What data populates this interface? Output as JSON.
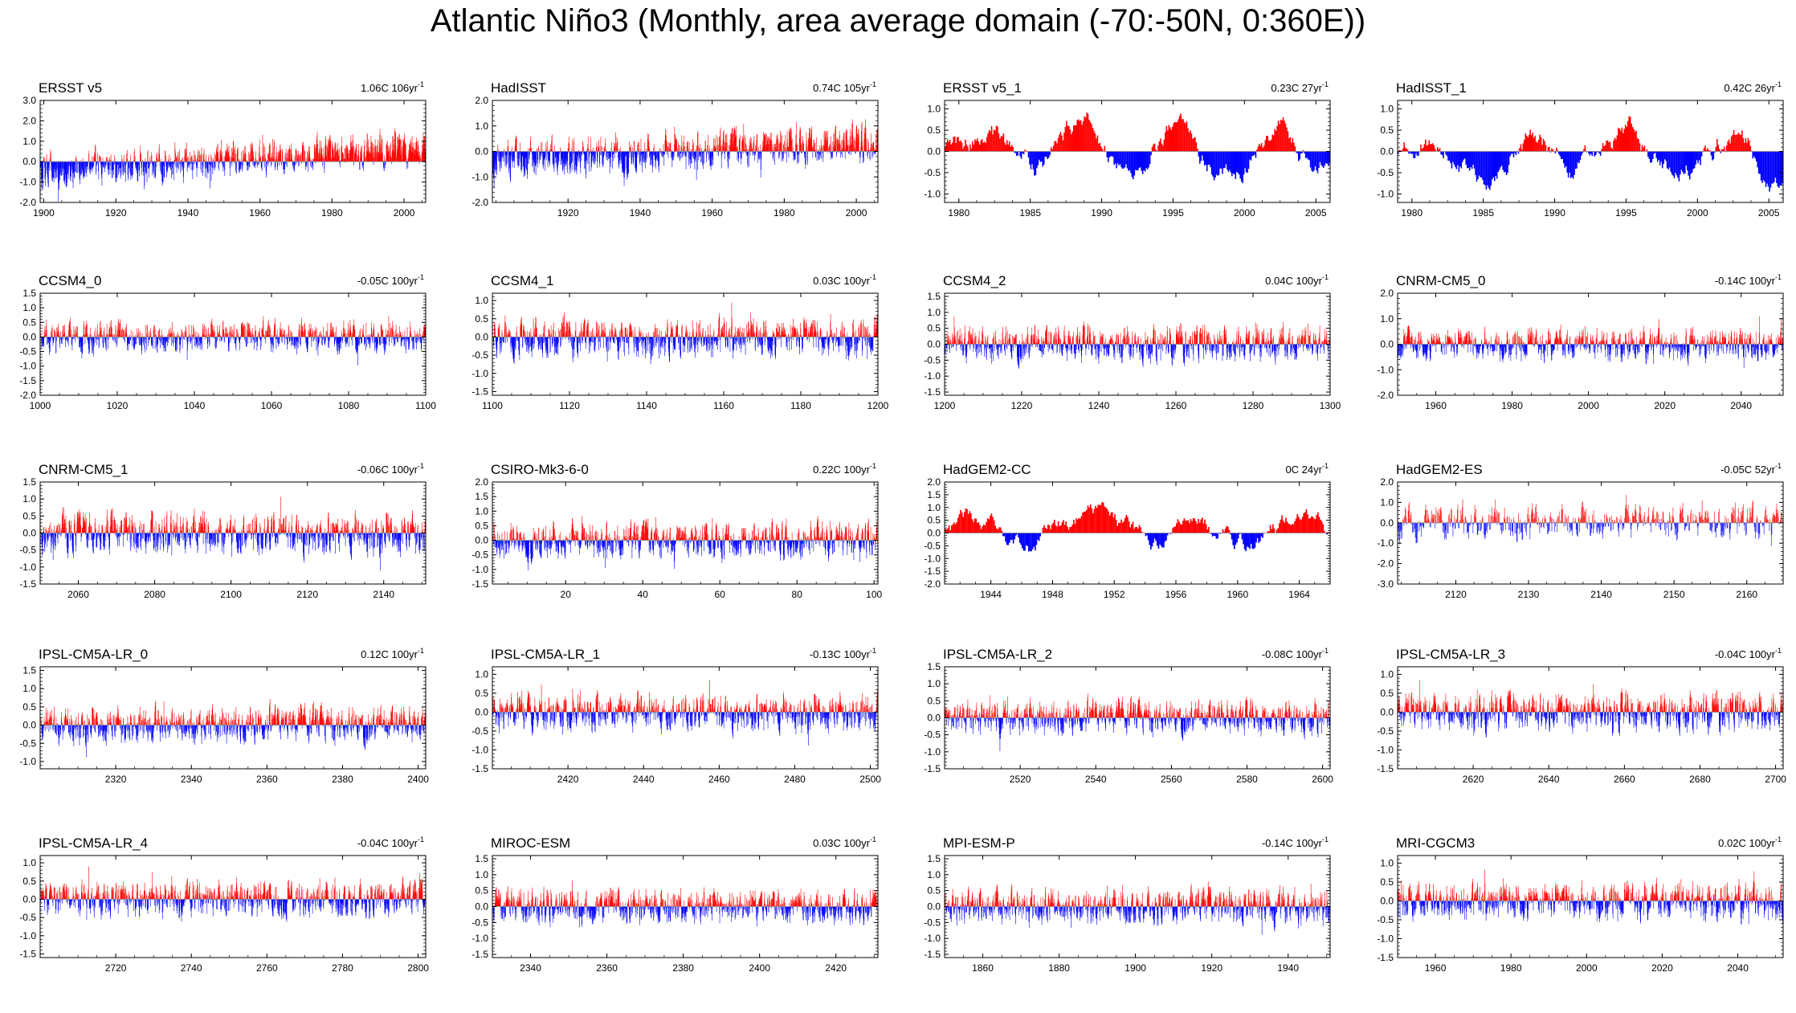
{
  "title": "Atlantic Niño3 (Monthly, area average domain (-70:-50N, 0:360E))",
  "colors": {
    "positive": "#ff0000",
    "negative": "#0000ff",
    "frame": "#000000",
    "zero": "#888888"
  },
  "chart_data": [
    {
      "name": "ERSST v5",
      "trend": "1.06C 106yr",
      "trend_sup": "-1",
      "type": "bar",
      "style": "noisy",
      "xlim": [
        1899,
        2006
      ],
      "ylim": [
        -2.0,
        3.0
      ],
      "xticks": [
        1900,
        1920,
        1940,
        1960,
        1980,
        2000
      ],
      "yticks": [
        "-2.0",
        "-1.0",
        "0.0",
        "1.0",
        "2.0",
        "3.0"
      ],
      "ytick_values": [
        -2,
        -1,
        0,
        1,
        2,
        3
      ],
      "amp": 0.7,
      "drift": [
        -0.5,
        0.7
      ],
      "seed": 11,
      "series": "synthetic monthly anomaly bars"
    },
    {
      "name": "HadISST",
      "trend": "0.74C 105yr",
      "trend_sup": "-1",
      "type": "bar",
      "style": "noisy",
      "xlim": [
        1899,
        2006
      ],
      "ylim": [
        -2.0,
        2.0
      ],
      "xticks": [
        1920,
        1940,
        1960,
        1980,
        2000
      ],
      "yticks": [
        "-2.0",
        "-1.0",
        "0.0",
        "1.0",
        "2.0"
      ],
      "ytick_values": [
        -2,
        -1,
        0,
        1,
        2
      ],
      "amp": 0.6,
      "drift": [
        -0.4,
        0.4
      ],
      "seed": 12,
      "series": "synthetic monthly anomaly bars"
    },
    {
      "name": "ERSST v5_1",
      "trend": "0.23C 27yr",
      "trend_sup": "-1",
      "type": "bar",
      "style": "smooth",
      "xlim": [
        1979,
        2006
      ],
      "ylim": [
        -1.2,
        1.2
      ],
      "xticks": [
        1980,
        1985,
        1990,
        1995,
        2000,
        2005
      ],
      "yticks": [
        "-1.0",
        "-0.5",
        "0.0",
        "0.5",
        "1.0"
      ],
      "ytick_values": [
        -1,
        -0.5,
        0,
        0.5,
        1
      ],
      "amp": 0.9,
      "drift": [
        0,
        0
      ],
      "seed": 13,
      "series": "synthetic monthly anomaly bars"
    },
    {
      "name": "HadISST_1",
      "trend": "0.42C 26yr",
      "trend_sup": "-1",
      "type": "bar",
      "style": "smooth",
      "xlim": [
        1979,
        2006
      ],
      "ylim": [
        -1.2,
        1.2
      ],
      "xticks": [
        1980,
        1985,
        1990,
        1995,
        2000,
        2005
      ],
      "yticks": [
        "-1.0",
        "-0.5",
        "0.0",
        "0.5",
        "1.0"
      ],
      "ytick_values": [
        -1,
        -0.5,
        0,
        0.5,
        1
      ],
      "amp": 0.9,
      "drift": [
        0,
        0
      ],
      "seed": 14,
      "series": "synthetic monthly anomaly bars"
    },
    {
      "name": "CCSM4_0",
      "trend": "-0.05C 100yr",
      "trend_sup": "-1",
      "type": "bar",
      "style": "noisy",
      "xlim": [
        1000,
        1100
      ],
      "ylim": [
        -2.0,
        1.5
      ],
      "xticks": [
        1000,
        1020,
        1040,
        1060,
        1080,
        1100
      ],
      "yticks": [
        "-2.0",
        "-1.5",
        "-1.0",
        "-0.5",
        "0.0",
        "0.5",
        "1.0",
        "1.5"
      ],
      "ytick_values": [
        -2,
        -1.5,
        -1,
        -0.5,
        0,
        0.5,
        1,
        1.5
      ],
      "amp": 0.45,
      "drift": [
        0,
        0
      ],
      "seed": 21,
      "series": "synthetic monthly anomaly bars"
    },
    {
      "name": "CCSM4_1",
      "trend": "0.03C 100yr",
      "trend_sup": "-1",
      "type": "bar",
      "style": "noisy",
      "xlim": [
        1100,
        1200
      ],
      "ylim": [
        -1.6,
        1.2
      ],
      "xticks": [
        1100,
        1120,
        1140,
        1160,
        1180,
        1200
      ],
      "yticks": [
        "-1.5",
        "-1.0",
        "-0.5",
        "0.0",
        "0.5",
        "1.0"
      ],
      "ytick_values": [
        -1.5,
        -1,
        -0.5,
        0,
        0.5,
        1
      ],
      "amp": 0.45,
      "drift": [
        0,
        0
      ],
      "seed": 22,
      "series": "synthetic monthly anomaly bars"
    },
    {
      "name": "CCSM4_2",
      "trend": "0.04C 100yr",
      "trend_sup": "-1",
      "type": "bar",
      "style": "noisy",
      "xlim": [
        1200,
        1300
      ],
      "ylim": [
        -1.6,
        1.6
      ],
      "xticks": [
        1200,
        1220,
        1240,
        1260,
        1280,
        1300
      ],
      "yticks": [
        "-1.5",
        "-1.0",
        "-0.5",
        "0.0",
        "0.5",
        "1.0",
        "1.5"
      ],
      "ytick_values": [
        -1.5,
        -1,
        -0.5,
        0,
        0.5,
        1,
        1.5
      ],
      "amp": 0.45,
      "drift": [
        0,
        0
      ],
      "seed": 23,
      "series": "synthetic monthly anomaly bars"
    },
    {
      "name": "CNRM-CM5_0",
      "trend": "-0.14C 100yr",
      "trend_sup": "-1",
      "type": "bar",
      "style": "noisy",
      "xlim": [
        1950,
        2051
      ],
      "ylim": [
        -2.0,
        2.0
      ],
      "xticks": [
        1960,
        1980,
        2000,
        2020,
        2040
      ],
      "yticks": [
        "-2.0",
        "-1.0",
        "0.0",
        "1.0",
        "2.0"
      ],
      "ytick_values": [
        -2,
        -1,
        0,
        1,
        2
      ],
      "amp": 0.5,
      "drift": [
        0,
        0
      ],
      "seed": 24,
      "series": "synthetic monthly anomaly bars"
    },
    {
      "name": "CNRM-CM5_1",
      "trend": "-0.06C 100yr",
      "trend_sup": "-1",
      "type": "bar",
      "style": "noisy",
      "xlim": [
        2050,
        2151
      ],
      "ylim": [
        -1.5,
        1.5
      ],
      "xticks": [
        2060,
        2080,
        2100,
        2120,
        2140
      ],
      "yticks": [
        "-1.5",
        "-1.0",
        "-0.5",
        "0.0",
        "0.5",
        "1.0",
        "1.5"
      ],
      "ytick_values": [
        -1.5,
        -1,
        -0.5,
        0,
        0.5,
        1,
        1.5
      ],
      "amp": 0.5,
      "drift": [
        0,
        0
      ],
      "seed": 31,
      "series": "synthetic monthly anomaly bars"
    },
    {
      "name": "CSIRO-Mk3-6-0",
      "trend": "0.22C 100yr",
      "trend_sup": "-1",
      "type": "bar",
      "style": "noisy",
      "xlim": [
        1,
        101
      ],
      "ylim": [
        -1.5,
        2.0
      ],
      "xticks": [
        20,
        40,
        60,
        80,
        100
      ],
      "yticks": [
        "-1.5",
        "-1.0",
        "-0.5",
        "0.0",
        "0.5",
        "1.0",
        "1.5",
        "2.0"
      ],
      "ytick_values": [
        -1.5,
        -1,
        -0.5,
        0,
        0.5,
        1,
        1.5,
        2
      ],
      "amp": 0.5,
      "drift": [
        0,
        0
      ],
      "seed": 32,
      "series": "synthetic monthly anomaly bars"
    },
    {
      "name": "HadGEM2-CC",
      "trend": "0C 24yr",
      "trend_sup": "-1",
      "type": "bar",
      "style": "smooth",
      "xlim": [
        1941,
        1966
      ],
      "ylim": [
        -2.0,
        2.0
      ],
      "xticks": [
        1944,
        1948,
        1952,
        1956,
        1960,
        1964
      ],
      "yticks": [
        "-2.0",
        "-1.5",
        "-1.0",
        "-0.5",
        "0.0",
        "0.5",
        "1.0",
        "1.5",
        "2.0"
      ],
      "ytick_values": [
        -2,
        -1.5,
        -1,
        -0.5,
        0,
        0.5,
        1,
        1.5,
        2
      ],
      "amp": 1.2,
      "drift": [
        0,
        0
      ],
      "seed": 33,
      "series": "synthetic monthly anomaly bars"
    },
    {
      "name": "HadGEM2-ES",
      "trend": "-0.05C 52yr",
      "trend_sup": "-1",
      "type": "bar",
      "style": "noisy",
      "xlim": [
        2112,
        2165
      ],
      "ylim": [
        -3.0,
        2.0
      ],
      "xticks": [
        2120,
        2130,
        2140,
        2150,
        2160
      ],
      "yticks": [
        "-3.0",
        "-2.0",
        "-1.0",
        "0.0",
        "1.0",
        "2.0"
      ],
      "ytick_values": [
        -3,
        -2,
        -1,
        0,
        1,
        2
      ],
      "amp": 0.7,
      "drift": [
        0,
        0
      ],
      "seed": 34,
      "series": "synthetic monthly anomaly bars"
    },
    {
      "name": "IPSL-CM5A-LR_0",
      "trend": "0.12C 100yr",
      "trend_sup": "-1",
      "type": "bar",
      "style": "noisy",
      "xlim": [
        2300,
        2402
      ],
      "ylim": [
        -1.2,
        1.6
      ],
      "xticks": [
        2320,
        2340,
        2360,
        2380,
        2400
      ],
      "yticks": [
        "-1.0",
        "-0.5",
        "0.0",
        "0.5",
        "1.0",
        "1.5"
      ],
      "ytick_values": [
        -1,
        -0.5,
        0,
        0.5,
        1,
        1.5
      ],
      "amp": 0.4,
      "drift": [
        0,
        0
      ],
      "seed": 41,
      "series": "synthetic monthly anomaly bars"
    },
    {
      "name": "IPSL-CM5A-LR_1",
      "trend": "-0.13C 100yr",
      "trend_sup": "-1",
      "type": "bar",
      "style": "noisy",
      "xlim": [
        2400,
        2502
      ],
      "ylim": [
        -1.5,
        1.2
      ],
      "xticks": [
        2420,
        2440,
        2460,
        2480,
        2500
      ],
      "yticks": [
        "-1.5",
        "-1.0",
        "-0.5",
        "0.0",
        "0.5",
        "1.0"
      ],
      "ytick_values": [
        -1.5,
        -1,
        -0.5,
        0,
        0.5,
        1
      ],
      "amp": 0.4,
      "drift": [
        0,
        0
      ],
      "seed": 42,
      "series": "synthetic monthly anomaly bars"
    },
    {
      "name": "IPSL-CM5A-LR_2",
      "trend": "-0.08C 100yr",
      "trend_sup": "-1",
      "type": "bar",
      "style": "noisy",
      "xlim": [
        2500,
        2602
      ],
      "ylim": [
        -1.5,
        1.5
      ],
      "xticks": [
        2520,
        2540,
        2560,
        2580,
        2600
      ],
      "yticks": [
        "-1.5",
        "-1.0",
        "-0.5",
        "0.0",
        "0.5",
        "1.0",
        "1.5"
      ],
      "ytick_values": [
        -1.5,
        -1,
        -0.5,
        0,
        0.5,
        1,
        1.5
      ],
      "amp": 0.4,
      "drift": [
        0,
        0
      ],
      "seed": 43,
      "series": "synthetic monthly anomaly bars"
    },
    {
      "name": "IPSL-CM5A-LR_3",
      "trend": "-0.04C 100yr",
      "trend_sup": "-1",
      "type": "bar",
      "style": "noisy",
      "xlim": [
        2600,
        2702
      ],
      "ylim": [
        -1.5,
        1.2
      ],
      "xticks": [
        2620,
        2640,
        2660,
        2680,
        2700
      ],
      "yticks": [
        "-1.5",
        "-1.0",
        "-0.5",
        "0.0",
        "0.5",
        "1.0"
      ],
      "ytick_values": [
        -1.5,
        -1,
        -0.5,
        0,
        0.5,
        1
      ],
      "amp": 0.4,
      "drift": [
        0,
        0
      ],
      "seed": 44,
      "series": "synthetic monthly anomaly bars"
    },
    {
      "name": "IPSL-CM5A-LR_4",
      "trend": "-0.04C 100yr",
      "trend_sup": "-1",
      "type": "bar",
      "style": "noisy",
      "xlim": [
        2700,
        2802
      ],
      "ylim": [
        -1.6,
        1.2
      ],
      "xticks": [
        2720,
        2740,
        2760,
        2780,
        2800
      ],
      "yticks": [
        "-1.5",
        "-1.0",
        "-0.5",
        "0.0",
        "0.5",
        "1.0"
      ],
      "ytick_values": [
        -1.5,
        -1,
        -0.5,
        0,
        0.5,
        1
      ],
      "amp": 0.4,
      "drift": [
        0,
        0
      ],
      "seed": 51,
      "series": "synthetic monthly anomaly bars"
    },
    {
      "name": "MIROC-ESM",
      "trend": "0.03C 100yr",
      "trend_sup": "-1",
      "type": "bar",
      "style": "noisy",
      "xlim": [
        2330,
        2431
      ],
      "ylim": [
        -1.6,
        1.6
      ],
      "xticks": [
        2340,
        2360,
        2380,
        2400,
        2420
      ],
      "yticks": [
        "-1.5",
        "-1.0",
        "-0.5",
        "0.0",
        "0.5",
        "1.0",
        "1.5"
      ],
      "ytick_values": [
        -1.5,
        -1,
        -0.5,
        0,
        0.5,
        1,
        1.5
      ],
      "amp": 0.45,
      "drift": [
        0,
        0
      ],
      "seed": 52,
      "series": "synthetic monthly anomaly bars"
    },
    {
      "name": "MPI-ESM-P",
      "trend": "-0.14C 100yr",
      "trend_sup": "-1",
      "type": "bar",
      "style": "noisy",
      "xlim": [
        1850,
        1951
      ],
      "ylim": [
        -1.6,
        1.6
      ],
      "xticks": [
        1860,
        1880,
        1900,
        1920,
        1940
      ],
      "yticks": [
        "-1.5",
        "-1.0",
        "-0.5",
        "0.0",
        "0.5",
        "1.0",
        "1.5"
      ],
      "ytick_values": [
        -1.5,
        -1,
        -0.5,
        0,
        0.5,
        1,
        1.5
      ],
      "amp": 0.45,
      "drift": [
        0,
        0
      ],
      "seed": 53,
      "series": "synthetic monthly anomaly bars"
    },
    {
      "name": "MRI-CGCM3",
      "trend": "0.02C 100yr",
      "trend_sup": "-1",
      "type": "bar",
      "style": "noisy",
      "xlim": [
        1950,
        2052
      ],
      "ylim": [
        -1.5,
        1.2
      ],
      "xticks": [
        1960,
        1980,
        2000,
        2020,
        2040
      ],
      "yticks": [
        "-1.5",
        "-1.0",
        "-0.5",
        "0.0",
        "0.5",
        "1.0"
      ],
      "ytick_values": [
        -1.5,
        -1,
        -0.5,
        0,
        0.5,
        1
      ],
      "amp": 0.4,
      "drift": [
        0,
        0
      ],
      "seed": 54,
      "series": "synthetic monthly anomaly bars"
    }
  ]
}
